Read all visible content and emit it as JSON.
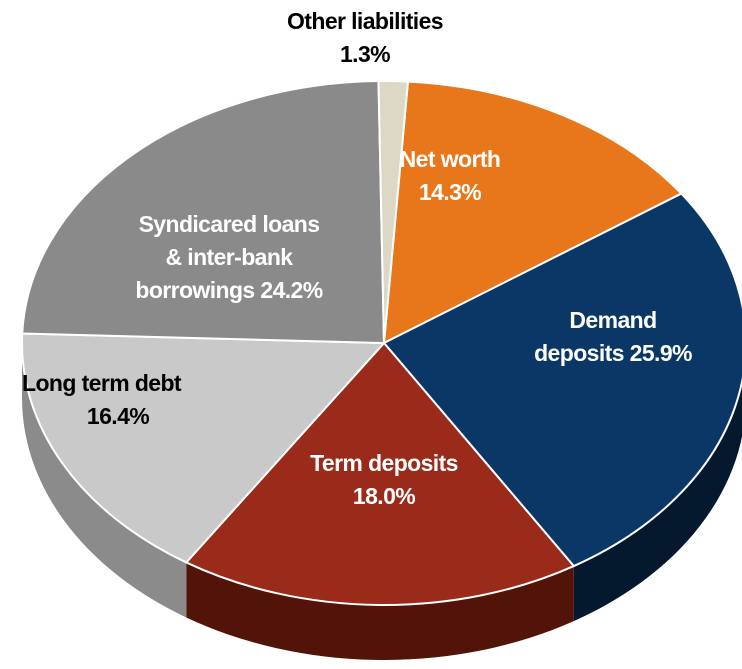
{
  "chart_data": {
    "type": "pie",
    "title": "",
    "slices": [
      {
        "label": "Net worth",
        "value": 14.3,
        "value_label": "14.3%",
        "color": "#e8761a",
        "side_color": "#9a4c0f",
        "label_color": "#ffffff"
      },
      {
        "label": "Demand deposits",
        "value": 25.9,
        "value_label": "25.9%",
        "color": "#0b3766",
        "side_color": "#04182e",
        "label_color": "#ffffff"
      },
      {
        "label": "Term deposits",
        "value": 18.0,
        "value_label": "18.0%",
        "color": "#9a2a1a",
        "side_color": "#521309",
        "label_color": "#ffffff"
      },
      {
        "label": "Long term debt",
        "value": 16.4,
        "value_label": "16.4%",
        "color": "#c9c9c9",
        "side_color": "#8b8b8b",
        "label_color": "#000000"
      },
      {
        "label": "Syndicared loans & inter-bank borrowings",
        "value": 24.2,
        "value_label": "24.2%",
        "color": "#8a8a8a",
        "side_color": "#565656",
        "label_color": "#ffffff"
      },
      {
        "label": "Other liabilities",
        "value": 1.3,
        "value_label": "1.3%",
        "color": "#ddd8c6",
        "side_color": "#9e998a",
        "label_color": "#000000"
      }
    ]
  }
}
